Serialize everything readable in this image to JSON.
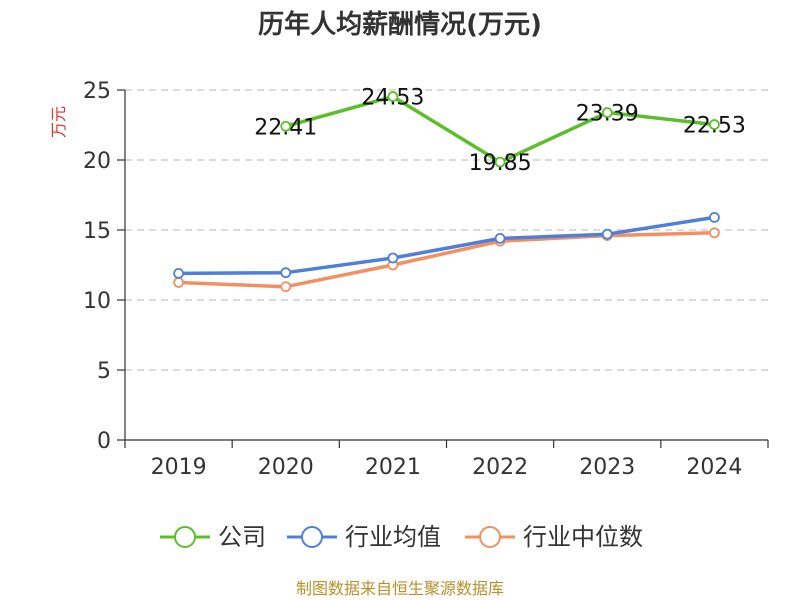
{
  "chart_data": {
    "type": "line",
    "title": "历年人均薪酬情况(万元)",
    "ylabel": "万元",
    "xlabel": "",
    "categories": [
      "2019",
      "2020",
      "2021",
      "2022",
      "2023",
      "2024"
    ],
    "ylim": [
      0,
      25
    ],
    "yticks": [
      0,
      5,
      10,
      15,
      20,
      25
    ],
    "grid": true,
    "legend_position": "bottom",
    "series": [
      {
        "name": "公司",
        "color": "#5bbf2a",
        "values": [
          null,
          22.41,
          24.53,
          19.85,
          23.39,
          22.53
        ],
        "labels": [
          "",
          "22.41",
          "24.53",
          "19.85",
          "23.39",
          "22.53"
        ]
      },
      {
        "name": "行业均值",
        "color": "#4f7fd8",
        "values": [
          11.9,
          11.95,
          13.0,
          14.4,
          14.7,
          15.9
        ]
      },
      {
        "name": "行业中位数",
        "color": "#f39062",
        "values": [
          11.25,
          10.95,
          12.5,
          14.2,
          14.6,
          14.8
        ]
      }
    ]
  },
  "source": "制图数据来自恒生聚源数据库"
}
